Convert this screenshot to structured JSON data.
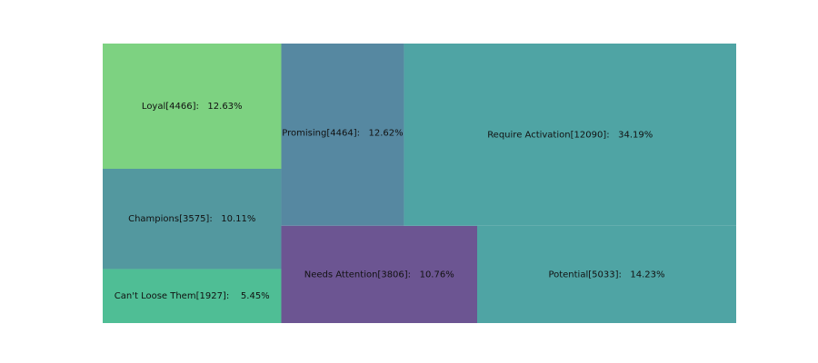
{
  "chart_data": {
    "type": "treemap",
    "title": "",
    "tiles": [
      {
        "name": "Loyal",
        "count": 4466,
        "percent": 12.63,
        "label": "Loyal[4466]:   12.63%",
        "color": "#7dd281"
      },
      {
        "name": "Champions",
        "count": 3575,
        "percent": 10.11,
        "label": "Champions[3575]:   10.11%",
        "color": "#53989f"
      },
      {
        "name": "Can't Loose Them",
        "count": 1927,
        "percent": 5.45,
        "label": "Can't Loose Them[1927]:    5.45%",
        "color": "#4fbe95"
      },
      {
        "name": "Promising",
        "count": 4464,
        "percent": 12.62,
        "label": "Promising[4464]:   12.62%",
        "color": "#5688a1"
      },
      {
        "name": "Needs Attention",
        "count": 3806,
        "percent": 10.76,
        "label": "Needs Attention[3806]:   10.76%",
        "color": "#6c5592"
      },
      {
        "name": "Require Activation",
        "count": 12090,
        "percent": 34.19,
        "label": "Require Activation[12090]:   34.19%",
        "color": "#4fa4a4"
      },
      {
        "name": "Potential",
        "count": 5033,
        "percent": 14.23,
        "label": "Potential[5033]:   14.23%",
        "color": "#4fa4a4"
      }
    ]
  }
}
